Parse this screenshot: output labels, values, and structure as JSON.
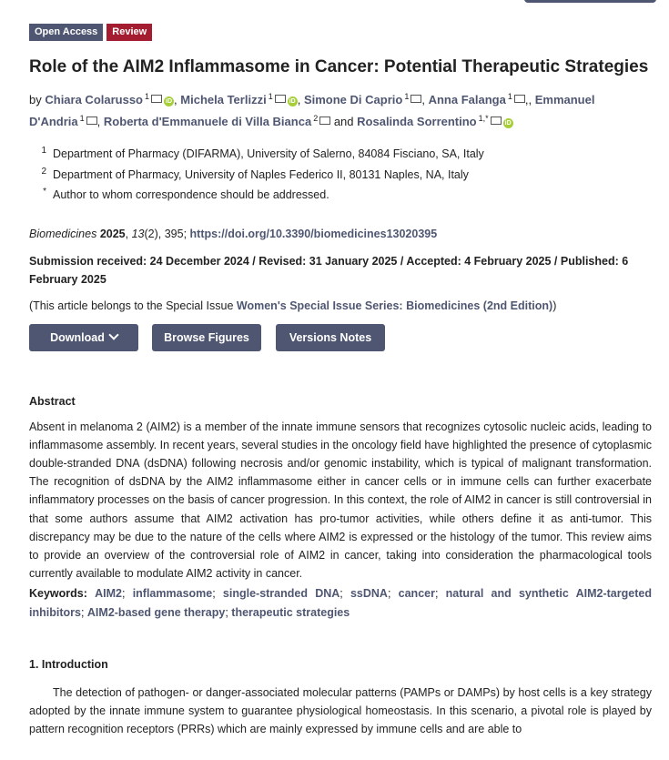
{
  "badges": {
    "open_access": "Open Access",
    "review": "Review"
  },
  "title": "Role of the AIM2 Inflammasome in Cancer: Potential Therapeutic Strategies",
  "authors_prefix": "by",
  "authors": [
    {
      "name": "Chiara Colarusso",
      "sup": "1",
      "orcid": true
    },
    {
      "name": "Michela Terlizzi",
      "sup": "1",
      "orcid": true
    },
    {
      "name": "Simone Di Caprio",
      "sup": "1",
      "orcid": false
    },
    {
      "name": "Anna Falanga",
      "sup": "1",
      "orcid": false
    },
    {
      "name": "Emmanuel D'Andria",
      "sup": "1",
      "orcid": false
    },
    {
      "name": "Roberta d'Emmanuele di Villa Bianca",
      "sup": "2",
      "orcid": false
    },
    {
      "name": "Rosalinda Sorrentino",
      "sup": "1,*",
      "orcid": true
    }
  ],
  "and_word": "and",
  "affiliations": [
    {
      "num": "1",
      "text": "Department of Pharmacy (DIFARMA), University of Salerno, 84084 Fisciano, SA, Italy"
    },
    {
      "num": "2",
      "text": "Department of Pharmacy, University of Naples Federico II, 80131 Naples, NA, Italy"
    },
    {
      "num": "*",
      "text": "Author to whom correspondence should be addressed."
    }
  ],
  "citation": {
    "journal": "Biomedicines",
    "year": "2025",
    "volume": "13",
    "issue_pages": "(2), 395;",
    "doi": "https://doi.org/10.3390/biomedicines13020395"
  },
  "dates": "Submission received: 24 December 2024 / Revised: 31 January 2025 / Accepted: 4 February 2025 / Published: 6 February 2025",
  "special_issue": {
    "prefix": "(This article belongs to the Special Issue",
    "link": "Women's Special Issue Series: Biomedicines (2nd Edition)",
    "suffix": ")"
  },
  "buttons": {
    "download": "Download",
    "browse_figures": "Browse Figures",
    "versions_notes": "Versions Notes"
  },
  "abstract": {
    "heading": "Abstract",
    "text": "Absent in melanoma 2 (AIM2) is a member of the innate immune sensors that recognizes cytosolic nucleic acids, leading to inflammasome assembly. In recent years, several studies in the oncology field have highlighted the presence of cytoplasmic double-stranded DNA (dsDNA) following necrosis and/or genomic instability, which is typical of malignant transformation. The recognition of dsDNA by the AIM2 inflammasome either in cancer cells or in immune cells can further exacerbate inflammatory processes on the basis of cancer progression. In this context, the role of AIM2 in cancer is still controversial in that some authors assume that AIM2 activation has pro-tumor activities, while others define it as anti-tumor. This discrepancy may be due to the nature of the cells where AIM2 is expressed or the histology of the tumor. This review aims to provide an overview of the controversial role of AIM2 in cancer, taking into consideration the pharmacological tools currently available to modulate AIM2 activity in cancer."
  },
  "keywords": {
    "label": "Keywords:",
    "items": [
      "AIM2",
      "inflammasome",
      "single-stranded DNA",
      "ssDNA",
      "cancer",
      "natural and synthetic AIM2-targeted inhibitors",
      "AIM2-based gene therapy",
      "therapeutic strategies"
    ]
  },
  "introduction": {
    "heading": "1. Introduction",
    "text": "The detection of pathogen- or danger-associated molecular patterns (PAMPs or DAMPs) by host cells is a key strategy adopted by the innate immune system to guarantee physiological homeostasis. In this scenario, a pivotal role is played by pattern recognition receptors (PRRs) which are mainly expressed by immune cells and are able to"
  },
  "colors": {
    "accent": "#4f5671",
    "review": "#a31c2f",
    "orcid": "#a6ce39"
  }
}
